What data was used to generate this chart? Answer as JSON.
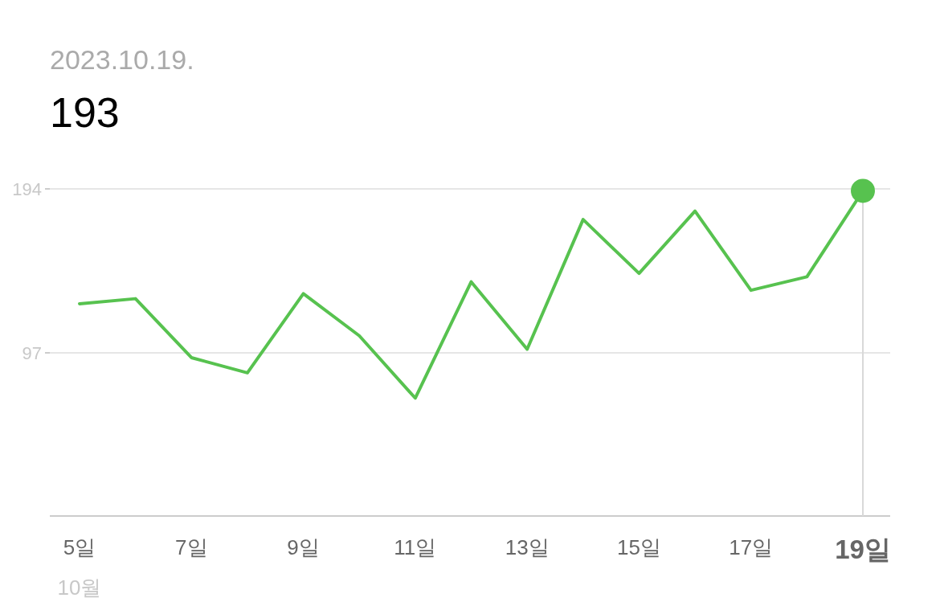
{
  "chart_data": {
    "type": "line",
    "title": "2023.10.19.",
    "subtitle": "193",
    "categories": [
      "5일",
      null,
      "7일",
      null,
      "9일",
      null,
      "11일",
      null,
      "13일",
      null,
      "15일",
      null,
      "17일",
      null,
      "19일"
    ],
    "series": [
      {
        "color": "#57c24f",
        "values": [
          126,
          129,
          94,
          85,
          132,
          107,
          70,
          139,
          99,
          176,
          144,
          181,
          134,
          142,
          193
        ]
      },
      {
        "type": "scatter",
        "marker": "circle",
        "color": "#57c24f",
        "x": [
          "19일"
        ],
        "values": [
          193
        ]
      }
    ],
    "ylim": [
      0,
      198
    ],
    "yticks": [
      97,
      194
    ],
    "grid": "y",
    "ref_lines": [
      {
        "axis": "x",
        "value": "19일",
        "color": "#d9d9d9"
      }
    ],
    "annotations": [
      "10월"
    ]
  }
}
